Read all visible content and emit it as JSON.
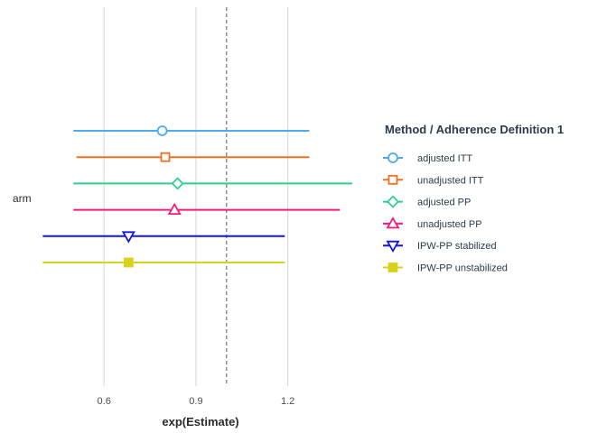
{
  "chart_data": {
    "type": "forest",
    "xlabel": "exp(Estimate)",
    "ylabel": "",
    "category": "arm",
    "xlim": [
      0.39,
      1.44
    ],
    "xticks": [
      0.6,
      0.9,
      1.2
    ],
    "xtick_labels": [
      "0.6",
      "0.9",
      "1.2"
    ],
    "reference_line": 1.0,
    "grid": "vertical major",
    "legend": {
      "title": "Method / Adherence Definition 1",
      "placement": "right"
    },
    "series": [
      {
        "name": "adjusted ITT",
        "color": "#4dabf0",
        "marker": "circle",
        "estimate": 0.79,
        "lower": 0.5,
        "upper": 1.27
      },
      {
        "name": "unadjusted ITT",
        "color": "#f07122",
        "marker": "square",
        "estimate": 0.8,
        "lower": 0.51,
        "upper": 1.27
      },
      {
        "name": "adjusted PP",
        "color": "#2fcf8f",
        "marker": "diamond",
        "estimate": 0.84,
        "lower": 0.5,
        "upper": 1.41
      },
      {
        "name": "unadjusted PP",
        "color": "#f01e78",
        "marker": "triangle-up",
        "estimate": 0.83,
        "lower": 0.5,
        "upper": 1.37
      },
      {
        "name": "IPW-PP stabilized",
        "color": "#1414e6",
        "marker": "triangle-down",
        "estimate": 0.68,
        "lower": 0.4,
        "upper": 1.19
      },
      {
        "name": "IPW-PP unstabilized",
        "color": "#d9d21c",
        "marker": "square-filled",
        "estimate": 0.68,
        "lower": 0.4,
        "upper": 1.19
      }
    ]
  }
}
